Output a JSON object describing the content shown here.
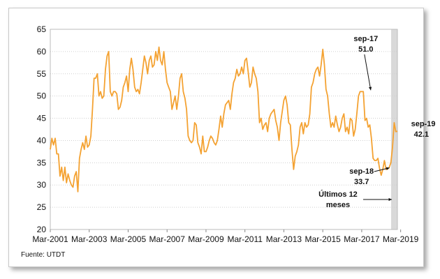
{
  "source": "Fuente: UTDT",
  "chart_data": {
    "type": "line",
    "title": "",
    "xlabel": "",
    "ylabel": "",
    "ylim": [
      20,
      65
    ],
    "yticks": [
      "20",
      "25",
      "30",
      "35",
      "40",
      "45",
      "50",
      "55",
      "60",
      "65"
    ],
    "xticks": [
      "Mar-2001",
      "Mar-2003",
      "Mar-2005",
      "Mar-2007",
      "Mar-2009",
      "Mar-2011",
      "Mar-2013",
      "Mar-2015",
      "Mar-2017",
      "Mar-2019"
    ],
    "series_color": "#f4a232",
    "shaded_region": {
      "from": "2018-10",
      "to": "2019-09",
      "color": "#d9d9d9"
    },
    "annotations": [
      {
        "label": "sep-17",
        "value": "51.0",
        "date": "2017-09",
        "y": 51.0
      },
      {
        "label": "sep-18",
        "value": "33.7",
        "date": "2018-09",
        "y": 33.7
      },
      {
        "label": "sep-19",
        "value": "42.1",
        "date": "2019-09",
        "y": 42.1
      }
    ],
    "note": "Últimos 12 meses",
    "series": [
      {
        "start": "2001-03",
        "frequency": "monthly",
        "values": [
          38,
          40.5,
          39,
          40.5,
          37,
          37,
          32,
          34,
          31,
          34,
          30.5,
          32.5,
          31,
          30,
          29.5,
          32,
          33,
          28.5,
          36,
          38,
          39.5,
          38,
          41,
          38.5,
          39,
          41,
          47,
          54,
          54,
          55,
          50,
          51,
          49.5,
          50,
          56,
          59,
          60,
          51,
          50,
          51,
          51,
          50.5,
          47,
          47.5,
          49,
          52,
          53,
          54.5,
          51,
          56,
          58.5,
          56,
          52,
          51,
          51.5,
          50.5,
          53,
          56,
          59,
          57.5,
          55,
          58,
          59,
          56.5,
          57,
          60,
          58,
          61,
          58,
          57,
          60,
          56,
          53,
          52,
          51,
          47,
          48.5,
          50,
          47,
          50,
          54,
          55,
          51,
          49.5,
          47,
          41,
          40,
          39.5,
          40,
          44,
          43.5,
          39.5,
          38.5,
          37,
          41,
          37.5,
          37.5,
          38.5,
          40,
          41,
          40.5,
          39.5,
          39,
          40,
          42.5,
          45.5,
          43,
          46,
          48,
          48.5,
          49,
          47,
          50.5,
          53,
          54,
          56,
          54.5,
          55,
          56.5,
          55,
          58,
          58.5,
          55.5,
          52,
          53,
          56.5,
          55,
          54,
          51,
          44,
          45,
          42.5,
          43.5,
          44,
          42,
          45,
          46,
          46.5,
          47,
          44.5,
          43,
          40,
          44,
          46.5,
          49,
          50,
          48,
          44,
          43.5,
          38,
          33.5,
          36.5,
          37.5,
          39,
          43,
          44,
          41.5,
          44,
          43,
          43.5,
          46,
          52,
          53,
          55,
          56,
          56.5,
          54.5,
          57,
          60.5,
          57,
          51.5,
          50,
          46,
          43,
          44,
          43,
          45.5,
          43.5,
          42,
          43,
          45,
          46,
          42,
          43,
          41.5,
          45,
          44.5,
          41,
          42.5,
          46,
          50,
          51,
          51,
          51,
          44.5,
          45,
          43,
          43.5,
          40.5,
          36,
          35.5,
          35.5,
          36,
          33.7,
          32.2,
          33.5,
          35.5,
          33.5,
          33.6,
          34,
          35,
          38.5,
          44,
          42,
          42.1
        ]
      }
    ]
  }
}
